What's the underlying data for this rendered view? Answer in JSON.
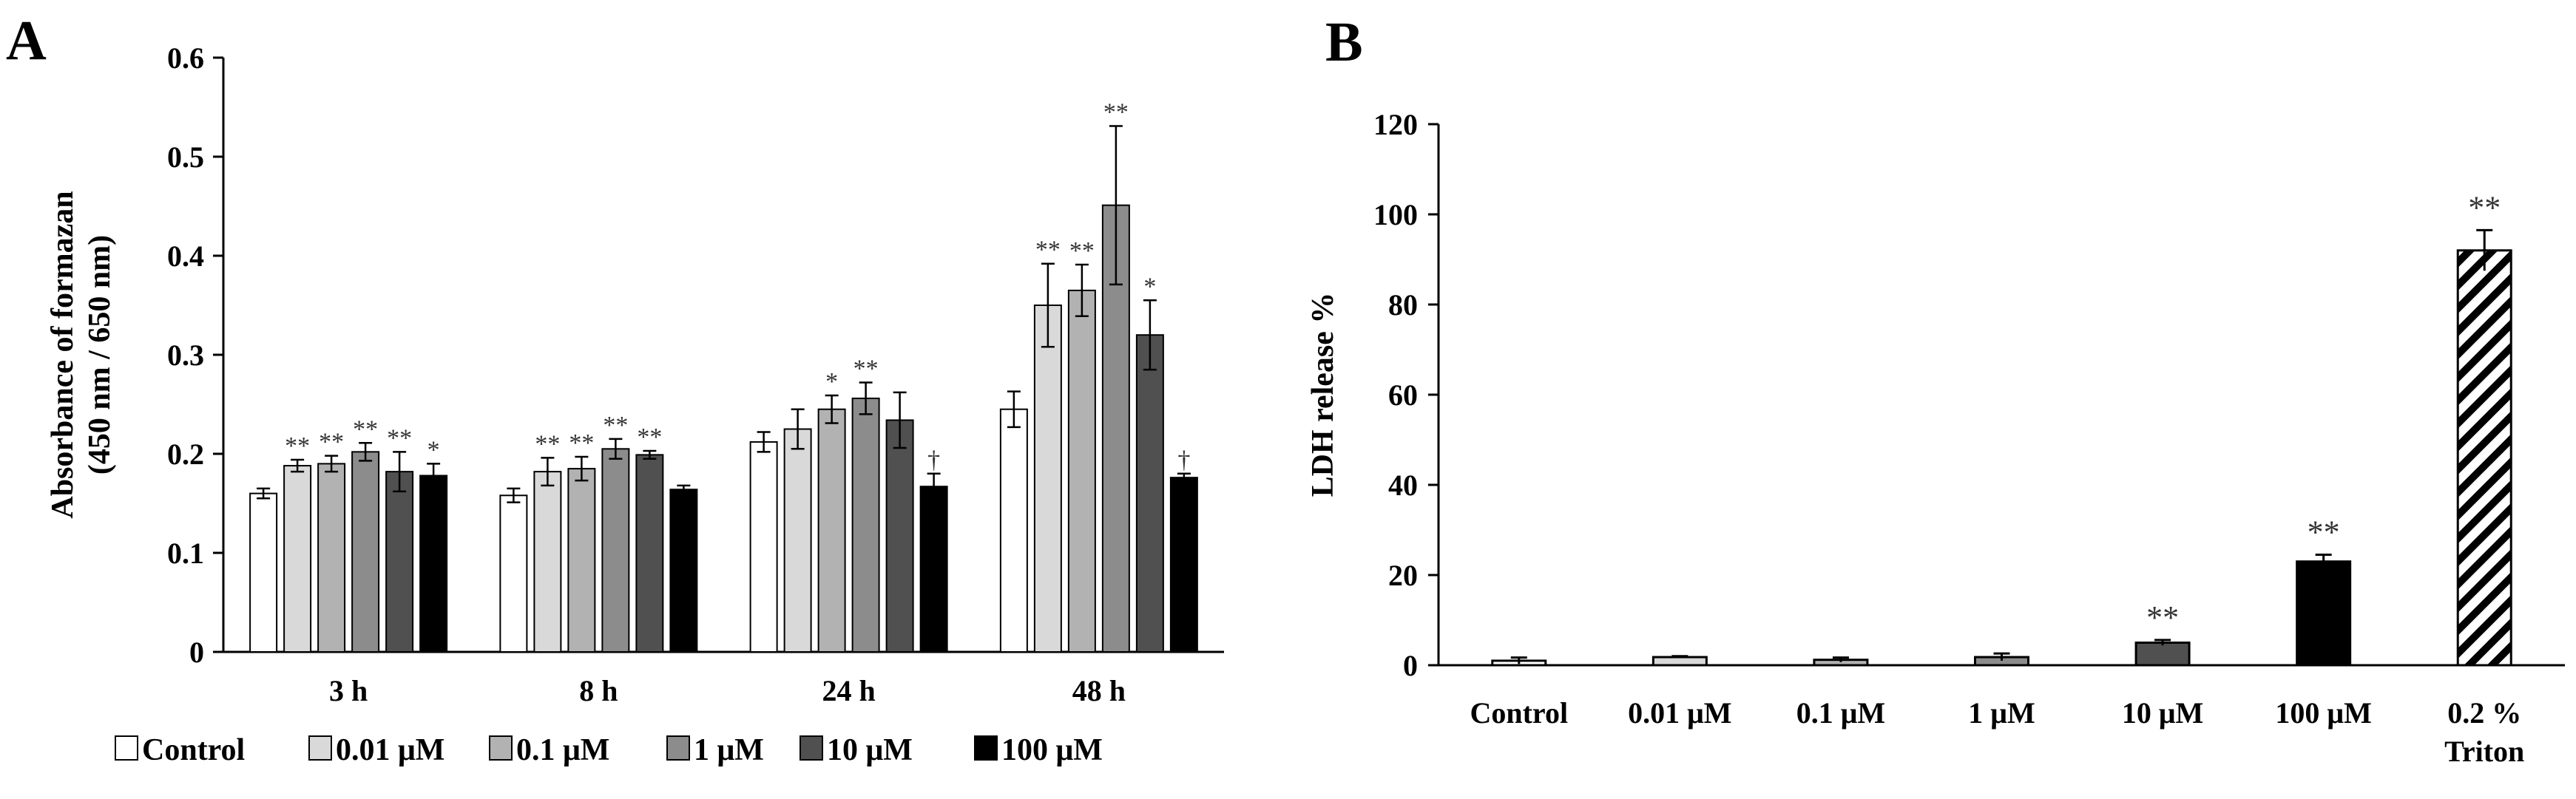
{
  "chart_data": [
    {
      "type": "bar",
      "panel": "A",
      "ylabel": "Absorbance of formazan",
      "ylabel2": "(450 nm / 650 nm)",
      "xlabel": "",
      "ylim": [
        0,
        0.6
      ],
      "yticks": [
        "0",
        "0.1",
        "0.2",
        "0.3",
        "0.4",
        "0.5",
        "0.6"
      ],
      "categories": [
        "3 h",
        "8 h",
        "24 h",
        "48 h"
      ],
      "series": [
        {
          "name": "Control",
          "color": "#ffffff",
          "values": [
            0.16,
            0.158,
            0.212,
            0.245
          ],
          "errors": [
            0.005,
            0.007,
            0.01,
            0.018
          ],
          "sig": [
            "",
            "",
            "",
            ""
          ]
        },
        {
          "name": "0.01 μM",
          "color": "#d9d9d9",
          "values": [
            0.188,
            0.182,
            0.225,
            0.35
          ],
          "errors": [
            0.006,
            0.014,
            0.02,
            0.042
          ],
          "sig": [
            "**",
            "**",
            "",
            "**"
          ]
        },
        {
          "name": "0.1 μM",
          "color": "#b2b2b2",
          "values": [
            0.19,
            0.185,
            0.245,
            0.365
          ],
          "errors": [
            0.008,
            0.012,
            0.014,
            0.026
          ],
          "sig": [
            "**",
            "**",
            "*",
            "**"
          ]
        },
        {
          "name": "1 μM",
          "color": "#8c8c8c",
          "values": [
            0.202,
            0.205,
            0.256,
            0.451
          ],
          "errors": [
            0.009,
            0.01,
            0.016,
            0.08
          ],
          "sig": [
            "**",
            "**",
            "**",
            "**"
          ]
        },
        {
          "name": "10 μM",
          "color": "#505050",
          "values": [
            0.182,
            0.199,
            0.234,
            0.32
          ],
          "errors": [
            0.02,
            0.004,
            0.028,
            0.035
          ],
          "sig": [
            "**",
            "**",
            "",
            "*"
          ]
        },
        {
          "name": "100 μM",
          "color": "#000000",
          "values": [
            0.178,
            0.164,
            0.167,
            0.176
          ],
          "errors": [
            0.012,
            0.004,
            0.013,
            0.004
          ],
          "sig": [
            "*",
            "",
            "†",
            "†"
          ]
        }
      ],
      "legend": [
        "Control",
        "0.01 μM",
        "0.1 μM",
        "1 μM",
        "10 μM",
        "100 μM"
      ]
    },
    {
      "type": "bar",
      "panel": "B",
      "ylabel": "LDH release %",
      "xlabel": "",
      "ylim": [
        0,
        120
      ],
      "yticks": [
        "0",
        "20",
        "40",
        "60",
        "80",
        "100",
        "120"
      ],
      "categories": [
        "Control",
        "0.01 μM",
        "0.1 μM",
        "1 μM",
        "10 μM",
        "100 μM",
        "0.2 %"
      ],
      "category_line2": [
        "",
        "",
        "",
        "",
        "",
        "",
        "Triton"
      ],
      "values": [
        1.0,
        1.8,
        1.2,
        1.8,
        5.0,
        23.0,
        92.0
      ],
      "errors": [
        0.7,
        0.2,
        0.5,
        0.8,
        0.6,
        1.5,
        4.5
      ],
      "colors": [
        "#ffffff",
        "#d9d9d9",
        "#b2b2b2",
        "#8c8c8c",
        "#505050",
        "#000000",
        "hatch"
      ],
      "sig": [
        "",
        "",
        "",
        "",
        "**",
        "**",
        "**"
      ]
    }
  ]
}
